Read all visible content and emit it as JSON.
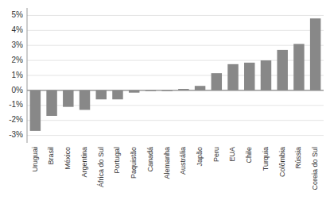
{
  "chart_data": {
    "type": "bar",
    "categories": [
      "Uruguai",
      "Brasil",
      "México",
      "Argentina",
      "África do Sul",
      "Portugal",
      "Paquistão",
      "Canadá",
      "Alemanha",
      "Austrália",
      "Japão",
      "Peru",
      "EUA",
      "Chile",
      "Turquia",
      "Colômbia",
      "Rússia",
      "Coreia do Sul"
    ],
    "values": [
      -2.7,
      -1.7,
      -1.1,
      -1.3,
      -0.6,
      -0.6,
      -0.15,
      -0.05,
      -0.05,
      0.1,
      0.3,
      1.15,
      1.75,
      1.85,
      2.0,
      2.7,
      3.1,
      4.8
    ],
    "color": "#888888",
    "ylim": [
      -3.5,
      5.5
    ],
    "yticks": [
      {
        "value": -3,
        "label": "-3%"
      },
      {
        "value": -2,
        "label": "-2%"
      },
      {
        "value": -1,
        "label": "-1%"
      },
      {
        "value": 0,
        "label": "0%"
      },
      {
        "value": 1,
        "label": "1%"
      },
      {
        "value": 2,
        "label": "2%"
      },
      {
        "value": 3,
        "label": "3%"
      },
      {
        "value": 4,
        "label": "4%"
      },
      {
        "value": 5,
        "label": "5%"
      }
    ],
    "grid": true
  }
}
